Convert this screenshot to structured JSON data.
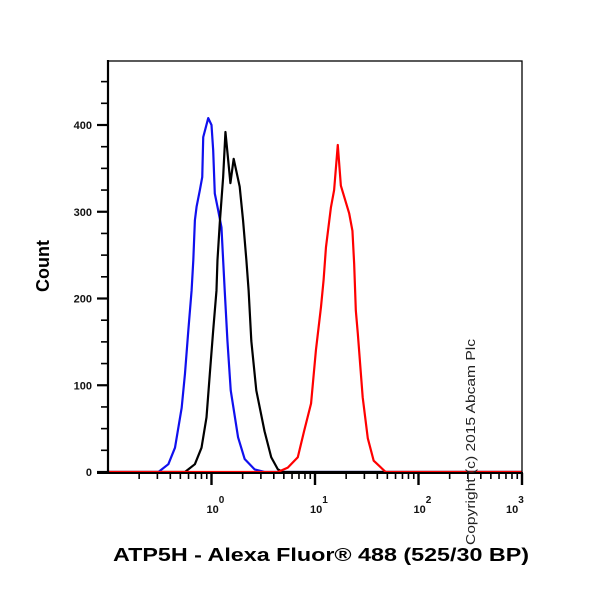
{
  "chart_data": {
    "type": "line",
    "subtype": "flow-cytometry-histogram-overlay",
    "title": "",
    "xlabel": "ATP5H - Alexa Fluor® 488 (525/30 BP)",
    "ylabel": "Count",
    "xscale": "log",
    "xlim": [
      0.1,
      1000
    ],
    "ylim": [
      0,
      474
    ],
    "grid": false,
    "legend": null,
    "x_ticks": [
      {
        "value": 1,
        "base": "10",
        "exp": "0"
      },
      {
        "value": 10,
        "base": "10",
        "exp": "1"
      },
      {
        "value": 100,
        "base": "10",
        "exp": "2"
      },
      {
        "value": 1000,
        "base": "10",
        "exp": "3"
      }
    ],
    "y_ticks": [
      0,
      100,
      200,
      300,
      400
    ],
    "y_minor_step": 25,
    "series": [
      {
        "name": "blue",
        "color": "#1010ee",
        "points": [
          [
            0.1,
            0
          ],
          [
            0.307,
            0
          ],
          [
            0.383,
            9
          ],
          [
            0.444,
            28
          ],
          [
            0.515,
            74
          ],
          [
            0.554,
            113
          ],
          [
            0.597,
            163
          ],
          [
            0.642,
            209
          ],
          [
            0.667,
            244
          ],
          [
            0.691,
            290
          ],
          [
            0.718,
            306
          ],
          [
            0.772,
            325
          ],
          [
            0.814,
            340
          ],
          [
            0.832,
            386
          ],
          [
            0.93,
            408
          ],
          [
            1.0,
            400
          ],
          [
            1.038,
            371
          ],
          [
            1.076,
            321
          ],
          [
            1.159,
            302
          ],
          [
            1.248,
            282
          ],
          [
            1.296,
            244
          ],
          [
            1.342,
            209
          ],
          [
            1.426,
            151
          ],
          [
            1.534,
            94
          ],
          [
            1.806,
            40
          ],
          [
            2.09,
            15
          ],
          [
            2.61,
            3
          ],
          [
            3.25,
            0
          ],
          [
            1000,
            0
          ]
        ]
      },
      {
        "name": "black",
        "color": "#000000",
        "points": [
          [
            0.1,
            0
          ],
          [
            0.554,
            0
          ],
          [
            0.691,
            9
          ],
          [
            0.801,
            28
          ],
          [
            0.895,
            63
          ],
          [
            0.963,
            113
          ],
          [
            1.038,
            163
          ],
          [
            1.117,
            209
          ],
          [
            1.142,
            244
          ],
          [
            1.202,
            287
          ],
          [
            1.296,
            340
          ],
          [
            1.364,
            392
          ],
          [
            1.523,
            333
          ],
          [
            1.638,
            361
          ],
          [
            1.872,
            329
          ],
          [
            2.018,
            290
          ],
          [
            2.173,
            244
          ],
          [
            2.284,
            209
          ],
          [
            2.425,
            151
          ],
          [
            2.709,
            94
          ],
          [
            3.254,
            47
          ],
          [
            3.776,
            17
          ],
          [
            4.378,
            3
          ],
          [
            4.891,
            0
          ],
          [
            1000,
            0
          ]
        ]
      },
      {
        "name": "red",
        "color": "#ff0000",
        "points": [
          [
            0.1,
            0
          ],
          [
            4.38,
            0
          ],
          [
            5.46,
            5
          ],
          [
            6.82,
            17
          ],
          [
            7.84,
            47
          ],
          [
            9.16,
            79
          ],
          [
            10.2,
            140
          ],
          [
            11.42,
            190
          ],
          [
            12.1,
            221
          ],
          [
            12.76,
            259
          ],
          [
            14.25,
            305
          ],
          [
            15.3,
            325
          ],
          [
            16.6,
            377
          ],
          [
            17.78,
            330
          ],
          [
            21.4,
            298
          ],
          [
            23.0,
            278
          ],
          [
            23.9,
            240
          ],
          [
            24.8,
            186
          ],
          [
            25.9,
            160
          ],
          [
            28.9,
            86
          ],
          [
            32.35,
            39
          ],
          [
            36.9,
            13
          ],
          [
            48.2,
            0
          ],
          [
            1000,
            0
          ]
        ]
      }
    ]
  },
  "copyright": "Copyright (c) 2015 Abcam Plc"
}
